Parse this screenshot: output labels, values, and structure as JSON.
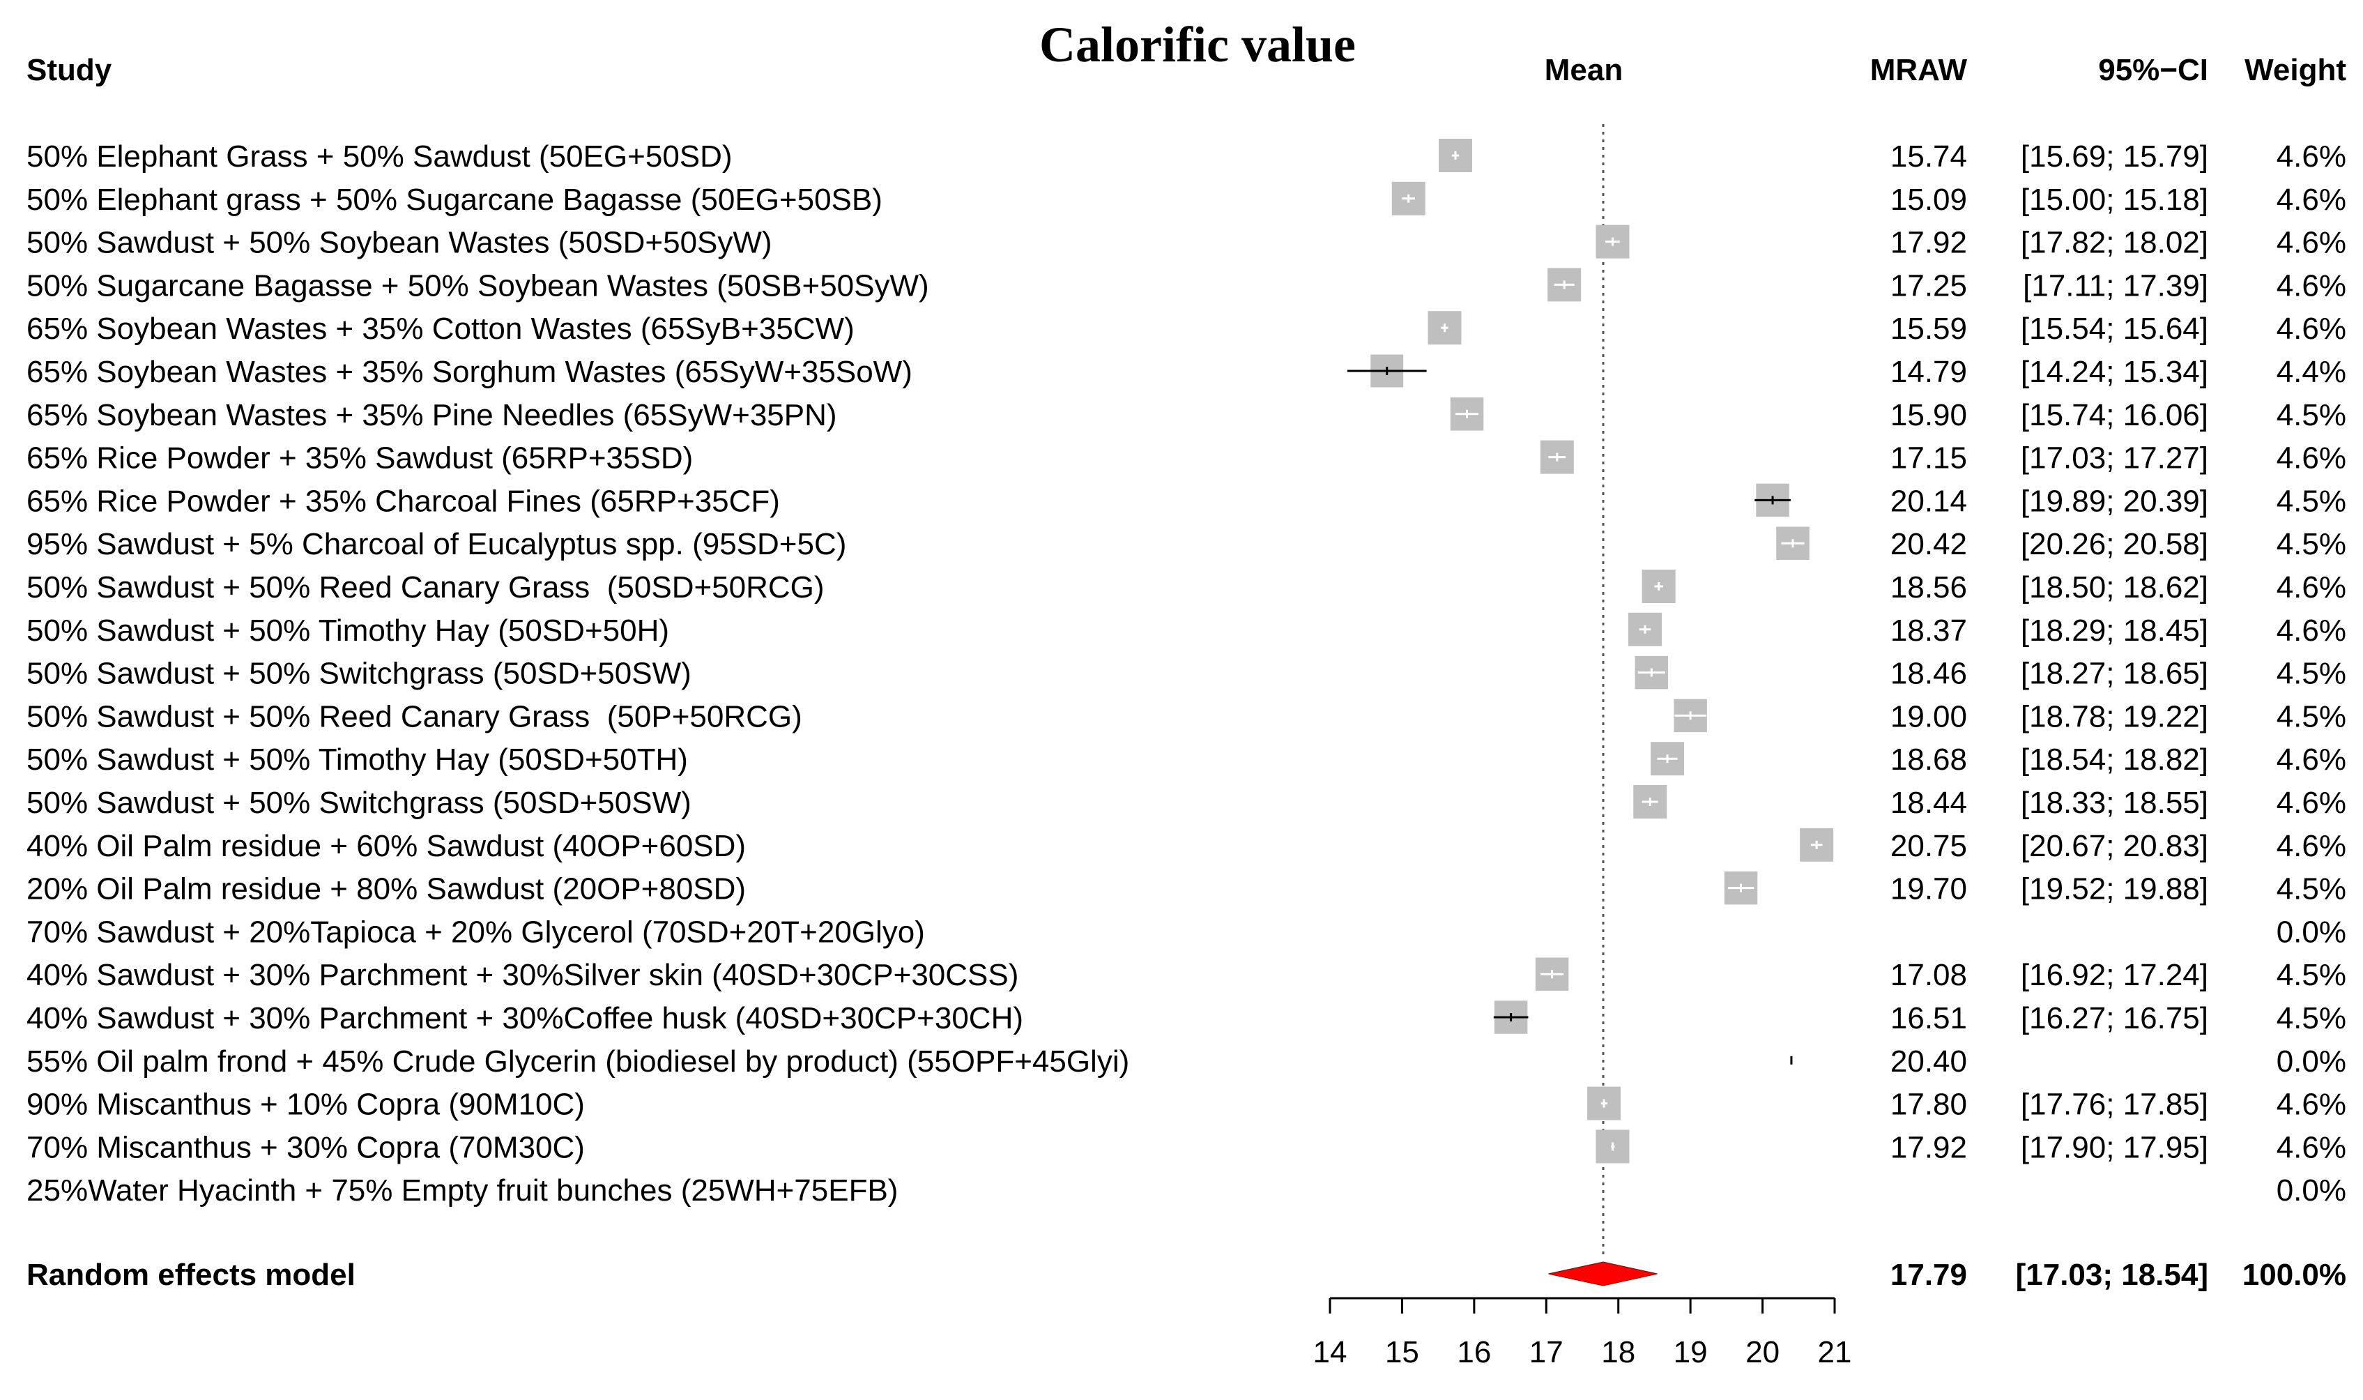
{
  "chart_data": {
    "type": "forest",
    "title": "Calorific value",
    "headers": {
      "study": "Study",
      "mean": "Mean",
      "mraw": "MRAW",
      "ci": "95%−CI",
      "weight": "Weight"
    },
    "xlim": [
      14,
      21
    ],
    "x_ticks": [
      "14",
      "15",
      "16",
      "17",
      "18",
      "19",
      "20",
      "21"
    ],
    "studies": [
      {
        "label": "50% Elephant Grass + 50% Sawdust (50EG+50SD)",
        "mraw": "15.74",
        "ci": "[15.69; 15.79]",
        "weight": "4.6%",
        "mean": 15.74,
        "lower": 15.69,
        "upper": 15.79,
        "w": 4.6
      },
      {
        "label": "50% Elephant grass + 50% Sugarcane Bagasse (50EG+50SB)",
        "mraw": "15.09",
        "ci": "[15.00; 15.18]",
        "weight": "4.6%",
        "mean": 15.09,
        "lower": 15.0,
        "upper": 15.18,
        "w": 4.6
      },
      {
        "label": "50% Sawdust + 50% Soybean Wastes (50SD+50SyW)",
        "mraw": "17.92",
        "ci": "[17.82; 18.02]",
        "weight": "4.6%",
        "mean": 17.92,
        "lower": 17.82,
        "upper": 18.02,
        "w": 4.6
      },
      {
        "label": "50% Sugarcane Bagasse + 50% Soybean Wastes (50SB+50SyW)",
        "mraw": "17.25",
        "ci": "[17.11; 17.39]",
        "weight": "4.6%",
        "mean": 17.25,
        "lower": 17.11,
        "upper": 17.39,
        "w": 4.6
      },
      {
        "label": "65% Soybean Wastes + 35% Cotton Wastes (65SyB+35CW)",
        "mraw": "15.59",
        "ci": "[15.54; 15.64]",
        "weight": "4.6%",
        "mean": 15.59,
        "lower": 15.54,
        "upper": 15.64,
        "w": 4.6
      },
      {
        "label": "65% Soybean Wastes + 35% Sorghum Wastes (65SyW+35SoW)",
        "mraw": "14.79",
        "ci": "[14.24; 15.34]",
        "weight": "4.4%",
        "mean": 14.79,
        "lower": 14.24,
        "upper": 15.34,
        "w": 4.4
      },
      {
        "label": "65% Soybean Wastes + 35% Pine Needles (65SyW+35PN)",
        "mraw": "15.90",
        "ci": "[15.74; 16.06]",
        "weight": "4.5%",
        "mean": 15.9,
        "lower": 15.74,
        "upper": 16.06,
        "w": 4.5
      },
      {
        "label": "65% Rice Powder + 35% Sawdust (65RP+35SD)",
        "mraw": "17.15",
        "ci": "[17.03; 17.27]",
        "weight": "4.6%",
        "mean": 17.15,
        "lower": 17.03,
        "upper": 17.27,
        "w": 4.6
      },
      {
        "label": "65% Rice Powder + 35% Charcoal Fines (65RP+35CF)",
        "mraw": "20.14",
        "ci": "[19.89; 20.39]",
        "weight": "4.5%",
        "mean": 20.14,
        "lower": 19.89,
        "upper": 20.39,
        "w": 4.5
      },
      {
        "label": "95% Sawdust + 5% Charcoal of Eucalyptus spp. (95SD+5C)",
        "mraw": "20.42",
        "ci": "[20.26; 20.58]",
        "weight": "4.5%",
        "mean": 20.42,
        "lower": 20.26,
        "upper": 20.58,
        "w": 4.5
      },
      {
        "label": "50% Sawdust + 50% Reed Canary Grass  (50SD+50RCG)",
        "mraw": "18.56",
        "ci": "[18.50; 18.62]",
        "weight": "4.6%",
        "mean": 18.56,
        "lower": 18.5,
        "upper": 18.62,
        "w": 4.6
      },
      {
        "label": "50% Sawdust + 50% Timothy Hay (50SD+50H)",
        "mraw": "18.37",
        "ci": "[18.29; 18.45]",
        "weight": "4.6%",
        "mean": 18.37,
        "lower": 18.29,
        "upper": 18.45,
        "w": 4.6
      },
      {
        "label": "50% Sawdust + 50% Switchgrass (50SD+50SW)",
        "mraw": "18.46",
        "ci": "[18.27; 18.65]",
        "weight": "4.5%",
        "mean": 18.46,
        "lower": 18.27,
        "upper": 18.65,
        "w": 4.5
      },
      {
        "label": "50% Sawdust + 50% Reed Canary Grass  (50P+50RCG)",
        "mraw": "19.00",
        "ci": "[18.78; 19.22]",
        "weight": "4.5%",
        "mean": 19.0,
        "lower": 18.78,
        "upper": 19.22,
        "w": 4.5
      },
      {
        "label": "50% Sawdust + 50% Timothy Hay (50SD+50TH)",
        "mraw": "18.68",
        "ci": "[18.54; 18.82]",
        "weight": "4.6%",
        "mean": 18.68,
        "lower": 18.54,
        "upper": 18.82,
        "w": 4.6
      },
      {
        "label": "50% Sawdust + 50% Switchgrass (50SD+50SW)",
        "mraw": "18.44",
        "ci": "[18.33; 18.55]",
        "weight": "4.6%",
        "mean": 18.44,
        "lower": 18.33,
        "upper": 18.55,
        "w": 4.6
      },
      {
        "label": "40% Oil Palm residue + 60% Sawdust (40OP+60SD)",
        "mraw": "20.75",
        "ci": "[20.67; 20.83]",
        "weight": "4.6%",
        "mean": 20.75,
        "lower": 20.67,
        "upper": 20.83,
        "w": 4.6
      },
      {
        "label": "20% Oil Palm residue + 80% Sawdust (20OP+80SD)",
        "mraw": "19.70",
        "ci": "[19.52; 19.88]",
        "weight": "4.5%",
        "mean": 19.7,
        "lower": 19.52,
        "upper": 19.88,
        "w": 4.5
      },
      {
        "label": "70% Sawdust + 20%Tapioca + 20% Glycerol (70SD+20T+20Glyo)",
        "mraw": "",
        "ci": "",
        "weight": "0.0%",
        "mean": null,
        "lower": null,
        "upper": null,
        "w": 0
      },
      {
        "label": "40% Sawdust + 30% Parchment + 30%Silver skin (40SD+30CP+30CSS)",
        "mraw": "17.08",
        "ci": "[16.92; 17.24]",
        "weight": "4.5%",
        "mean": 17.08,
        "lower": 16.92,
        "upper": 17.24,
        "w": 4.5
      },
      {
        "label": "40% Sawdust + 30% Parchment + 30%Coffee husk (40SD+30CP+30CH)",
        "mraw": "16.51",
        "ci": "[16.27; 16.75]",
        "weight": "4.5%",
        "mean": 16.51,
        "lower": 16.27,
        "upper": 16.75,
        "w": 4.5
      },
      {
        "label": "55% Oil palm frond + 45% Crude Glycerin (biodiesel by product) (55OPF+45Glyi)",
        "mraw": "20.40",
        "ci": "",
        "weight": "0.0%",
        "mean": 20.4,
        "lower": 20.4,
        "upper": 20.4,
        "w": 0
      },
      {
        "label": "90% Miscanthus + 10% Copra (90M10C)",
        "mraw": "17.80",
        "ci": "[17.76; 17.85]",
        "weight": "4.6%",
        "mean": 17.8,
        "lower": 17.76,
        "upper": 17.85,
        "w": 4.6
      },
      {
        "label": "70% Miscanthus + 30% Copra (70M30C)",
        "mraw": "17.92",
        "ci": "[17.90; 17.95]",
        "weight": "4.6%",
        "mean": 17.92,
        "lower": 17.9,
        "upper": 17.95,
        "w": 4.6
      },
      {
        "label": "25%Water Hyacinth + 75% Empty fruit bunches (25WH+75EFB)",
        "mraw": "",
        "ci": "",
        "weight": "0.0%",
        "mean": null,
        "lower": null,
        "upper": null,
        "w": 0
      }
    ],
    "pooled": {
      "label": "Random effects model",
      "mraw": "17.79",
      "ci": "[17.03; 18.54]",
      "weight": "100.0%",
      "mean": 17.79,
      "lower": 17.03,
      "upper": 18.54
    },
    "colors": {
      "box": "#bfbfbf",
      "diamond": "#ff0000",
      "text": "#000000",
      "reference_line": "#555555"
    }
  }
}
